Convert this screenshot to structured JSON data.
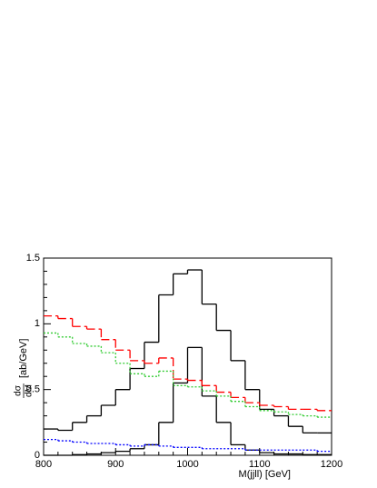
{
  "chart_data": {
    "type": "histogram",
    "x_label": "M(jjll)   [GeV]",
    "y_label": {
      "numerator": "dσ",
      "denominator": "dM",
      "unit": "[ab/GeV]"
    },
    "bins": [
      800,
      820,
      840,
      860,
      880,
      900,
      920,
      940,
      960,
      980,
      1000,
      1020,
      1040,
      1060,
      1080,
      1100,
      1120,
      1140,
      1160,
      1180,
      1200
    ],
    "series": [
      {
        "color": "#000000",
        "style": "solid",
        "values": [
          0.2,
          0.19,
          0.25,
          0.3,
          0.38,
          0.5,
          0.66,
          0.86,
          1.22,
          1.38,
          1.41,
          1.15,
          0.95,
          0.72,
          0.5,
          0.35,
          0.3,
          0.22,
          0.17,
          0.17
        ]
      },
      {
        "color": "#000000",
        "style": "solid",
        "values": [
          0,
          0,
          0.005,
          0.01,
          0.02,
          0.03,
          0.05,
          0.08,
          0.25,
          0.55,
          0.82,
          0.45,
          0.25,
          0.08,
          0.04,
          0.02,
          0.01,
          0.01,
          0.005,
          0.005
        ]
      },
      {
        "color": "#ff0000",
        "style": "dashed",
        "values": [
          1.06,
          1.04,
          0.98,
          0.96,
          0.88,
          0.8,
          0.72,
          0.7,
          0.74,
          0.58,
          0.57,
          0.53,
          0.48,
          0.44,
          0.4,
          0.38,
          0.37,
          0.35,
          0.35,
          0.34
        ]
      },
      {
        "color": "#33cc33",
        "style": "dotted",
        "values": [
          0.93,
          0.9,
          0.85,
          0.83,
          0.78,
          0.7,
          0.62,
          0.6,
          0.64,
          0.53,
          0.52,
          0.49,
          0.45,
          0.41,
          0.37,
          0.34,
          0.33,
          0.31,
          0.3,
          0.29
        ]
      },
      {
        "color": "#0000ff",
        "style": "dotted",
        "values": [
          0.12,
          0.11,
          0.1,
          0.09,
          0.09,
          0.08,
          0.07,
          0.08,
          0.07,
          0.06,
          0.06,
          0.05,
          0.05,
          0.05,
          0.04,
          0.04,
          0.04,
          0.04,
          0.04,
          0.03
        ]
      }
    ],
    "xlim": [
      800,
      1200
    ],
    "ylim": [
      0,
      1.5
    ],
    "xticks": [
      800,
      900,
      1000,
      1100,
      1200
    ],
    "yticks": [
      0,
      0.5,
      1,
      1.5
    ]
  }
}
